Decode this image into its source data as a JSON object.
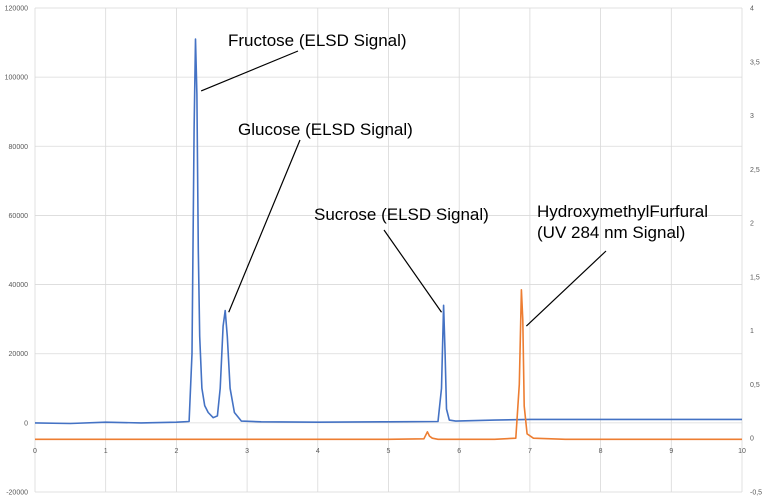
{
  "chart_data": {
    "type": "line",
    "title": "",
    "xlabel": "",
    "ylabel": "",
    "y2label": "",
    "xlim": [
      0,
      10
    ],
    "ylim": [
      -20000,
      120000
    ],
    "y2lim": [
      -0.5,
      4
    ],
    "grid": true,
    "legend": "none",
    "x_ticks": [
      "0",
      "1",
      "2",
      "3",
      "4",
      "5",
      "6",
      "7",
      "8",
      "9",
      "10"
    ],
    "y_ticks": [
      "-20000",
      "0",
      "20000",
      "40000",
      "60000",
      "80000",
      "100000",
      "120000"
    ],
    "y2_ticks": [
      "-0,5",
      "0",
      "0,5",
      "1",
      "1,5",
      "2",
      "2,5",
      "3",
      "3,5",
      "4"
    ],
    "colors": {
      "elsd": "#4472c4",
      "uv": "#ed7d31",
      "grid": "#d9d9d9",
      "axis": "#bfbfbf"
    },
    "series": [
      {
        "axis": "left",
        "color": "#4472c4",
        "x": [
          0,
          0.5,
          1.0,
          1.5,
          2.0,
          2.18,
          2.22,
          2.25,
          2.27,
          2.29,
          2.31,
          2.33,
          2.36,
          2.4,
          2.45,
          2.52,
          2.58,
          2.62,
          2.66,
          2.69,
          2.72,
          2.76,
          2.82,
          2.92,
          3.2,
          4.0,
          5.0,
          5.7,
          5.75,
          5.78,
          5.8,
          5.82,
          5.86,
          5.95,
          6.5,
          7.0,
          8.0,
          9.0,
          10.0
        ],
        "y": [
          0,
          -200,
          200,
          0,
          200,
          400,
          20000,
          85000,
          111000,
          95000,
          50000,
          25000,
          10000,
          5000,
          3000,
          1500,
          2000,
          10000,
          28000,
          32500,
          25000,
          10000,
          3000,
          500,
          300,
          200,
          300,
          400,
          10000,
          34000,
          20000,
          4000,
          800,
          500,
          800,
          1000,
          1000,
          1000,
          1000
        ]
      },
      {
        "axis": "right",
        "color": "#ed7d31",
        "x": [
          0,
          1.0,
          2.0,
          3.0,
          4.0,
          5.0,
          5.5,
          5.55,
          5.58,
          5.62,
          5.7,
          6.0,
          6.5,
          6.8,
          6.85,
          6.88,
          6.9,
          6.92,
          6.96,
          7.05,
          7.5,
          8.0,
          9.0,
          10.0
        ],
        "y": [
          -0.01,
          -0.01,
          -0.01,
          -0.01,
          -0.01,
          -0.01,
          -0.005,
          0.06,
          0.02,
          0.0,
          -0.01,
          -0.01,
          -0.01,
          0.0,
          0.5,
          1.38,
          1.1,
          0.3,
          0.04,
          0.0,
          -0.01,
          -0.01,
          -0.01,
          -0.01
        ]
      }
    ],
    "annotations": [
      {
        "lines": [
          "Fructose (ELSD Signal)"
        ],
        "arrow_to": [
          2.35,
          96000
        ]
      },
      {
        "lines": [
          "Glucose (ELSD Signal)"
        ],
        "arrow_to": [
          2.74,
          32000
        ]
      },
      {
        "lines": [
          "Sucrose (ELSD Signal)"
        ],
        "arrow_to": [
          5.75,
          32000
        ]
      },
      {
        "lines": [
          "HydroxymethylFurfural",
          "(UV 284 nm Signal)"
        ],
        "arrow_to": [
          6.95,
          28000
        ]
      }
    ]
  }
}
